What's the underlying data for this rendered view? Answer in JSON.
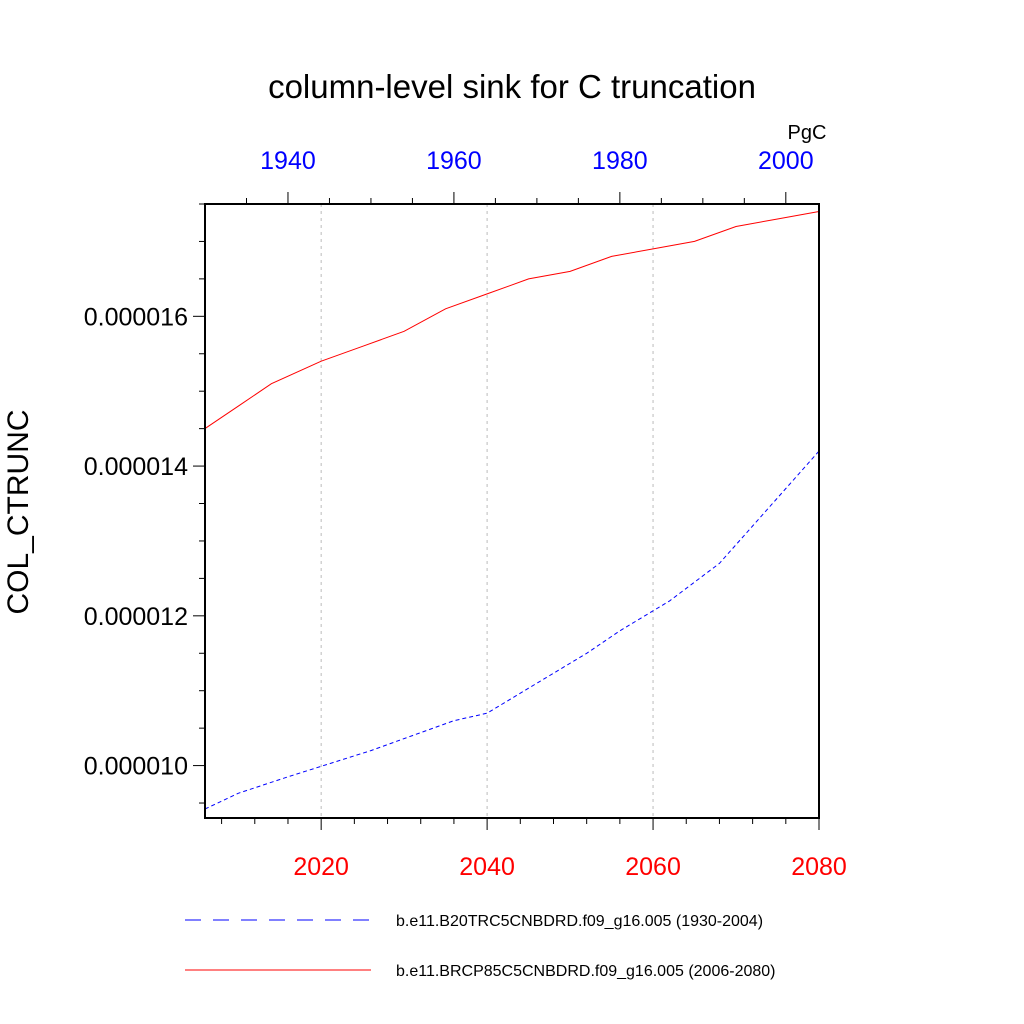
{
  "chart_data": {
    "type": "line",
    "title": "column-level sink for C truncation",
    "ylabel": "COL_CTRUNC",
    "units": "PgC",
    "ylim": [
      9.3e-06,
      1.75e-05
    ],
    "yticks": [
      {
        "value": 1e-05,
        "label": "0.000010"
      },
      {
        "value": 1.2e-05,
        "label": "0.000012"
      },
      {
        "value": 1.4e-05,
        "label": "0.000014"
      },
      {
        "value": 1.6e-05,
        "label": "0.000016"
      }
    ],
    "bottom_axis": {
      "range": [
        2006,
        2080
      ],
      "ticks": [
        {
          "value": 2020,
          "label": "2020"
        },
        {
          "value": 2040,
          "label": "2040"
        },
        {
          "value": 2060,
          "label": "2060"
        },
        {
          "value": 2080,
          "label": "2080"
        }
      ],
      "color": "#ff0000"
    },
    "top_axis": {
      "range": [
        1930,
        2004
      ],
      "ticks": [
        {
          "value": 1940,
          "label": "1940"
        },
        {
          "value": 1960,
          "label": "1960"
        },
        {
          "value": 1980,
          "label": "1980"
        },
        {
          "value": 2000,
          "label": "2000"
        }
      ],
      "color": "#0000ff"
    },
    "grid": "vertical dashed at bottom-axis major ticks",
    "series": [
      {
        "name": "b.e11.B20TRC5CNBDRD.f09_g16.005 (1930-2004)",
        "axis": "top",
        "color": "#0000ff",
        "dash": "dashed",
        "x": [
          1930,
          1934,
          1940,
          1944,
          1950,
          1955,
          1960,
          1964,
          1970,
          1976,
          1980,
          1986,
          1992,
          1996,
          2004
        ],
        "y": [
          9.42e-06,
          9.63e-06,
          9.85e-06,
          9.99e-06,
          1.02e-05,
          1.04e-05,
          1.06e-05,
          1.07e-05,
          1.11e-05,
          1.15e-05,
          1.18e-05,
          1.22e-05,
          1.27e-05,
          1.32e-05,
          1.42e-05
        ]
      },
      {
        "name": "b.e11.BRCP85C5CNBDRD.f09_g16.005 (2006-2080)",
        "axis": "bottom",
        "color": "#ff0000",
        "dash": "solid",
        "x": [
          2006,
          2010,
          2014,
          2020,
          2025,
          2030,
          2035,
          2040,
          2045,
          2050,
          2055,
          2060,
          2065,
          2070,
          2075,
          2080
        ],
        "y": [
          1.45e-05,
          1.48e-05,
          1.51e-05,
          1.54e-05,
          1.56e-05,
          1.58e-05,
          1.61e-05,
          1.63e-05,
          1.65e-05,
          1.66e-05,
          1.68e-05,
          1.69e-05,
          1.7e-05,
          1.72e-05,
          1.73e-05,
          1.74e-05
        ]
      }
    ]
  }
}
